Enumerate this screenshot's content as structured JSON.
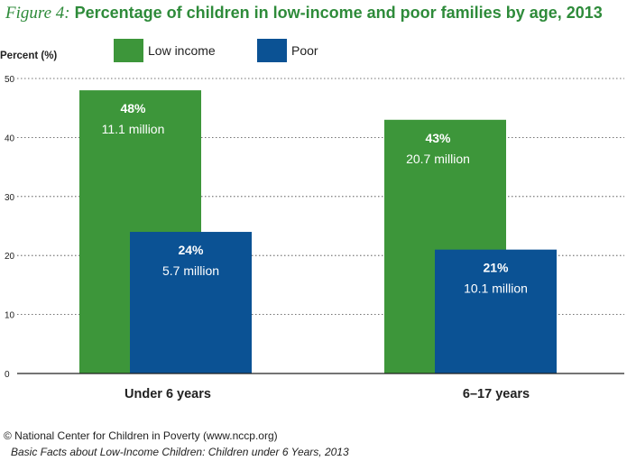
{
  "title": {
    "figure_label": "Figure 4:",
    "text": "Percentage of children in low-income and poor families by age, 2013"
  },
  "colors": {
    "low_income": "#3d963a",
    "poor": "#0b5294",
    "title": "#2e8b3a"
  },
  "chart_data": {
    "type": "bar",
    "ylabel": "Percent (%)",
    "xlabel": "",
    "ylim": [
      0,
      50
    ],
    "yticks": [
      0,
      10,
      20,
      30,
      40,
      50
    ],
    "grid": true,
    "legend_position": "top",
    "categories": [
      "Under 6 years",
      "6–17 years"
    ],
    "series": [
      {
        "name": "Low income",
        "color": "#3d963a",
        "values": [
          48,
          43
        ],
        "value_labels": [
          "48%",
          "43%"
        ],
        "count_labels": [
          "11.1 million",
          "20.7 million"
        ]
      },
      {
        "name": "Poor",
        "color": "#0b5294",
        "values": [
          24,
          21
        ],
        "value_labels": [
          "24%",
          "21%"
        ],
        "count_labels": [
          "5.7 million",
          "10.1 million"
        ]
      }
    ]
  },
  "footer": {
    "source": "© National Center for Children in Poverty (www.nccp.org)",
    "publication": "Basic Facts about Low-Income Children: Children under 6 Years, 2013"
  }
}
